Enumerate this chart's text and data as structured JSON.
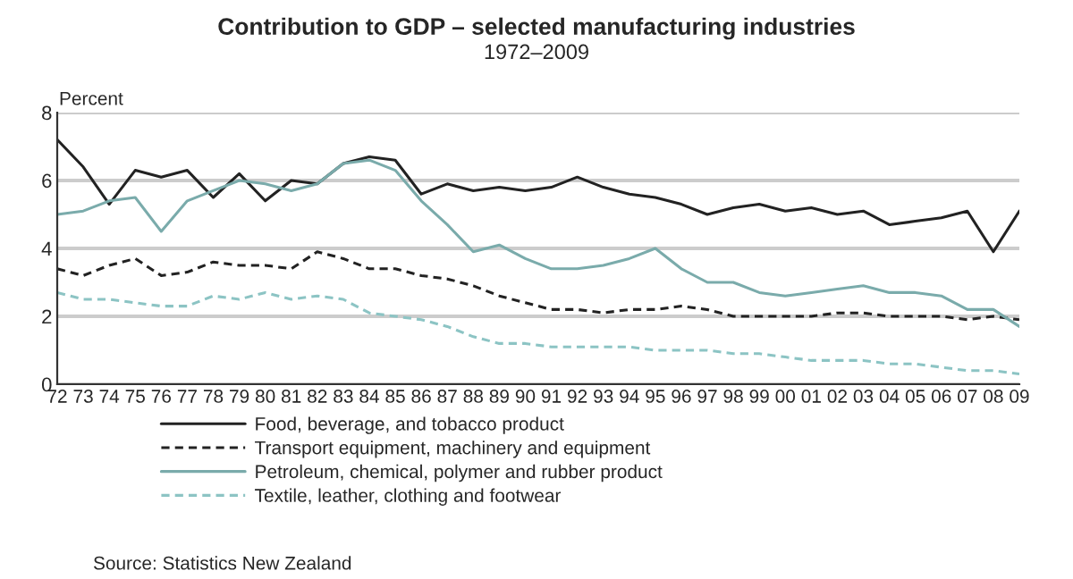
{
  "chart_data": {
    "type": "line",
    "title": "Contribution to GDP – selected manufacturing industries",
    "subtitle": "1972–2009",
    "ylabel": "Percent",
    "categories": [
      "72",
      "73",
      "74",
      "75",
      "76",
      "77",
      "78",
      "79",
      "80",
      "81",
      "82",
      "83",
      "84",
      "85",
      "86",
      "87",
      "88",
      "89",
      "90",
      "91",
      "92",
      "93",
      "94",
      "95",
      "96",
      "97",
      "98",
      "99",
      "00",
      "01",
      "02",
      "03",
      "04",
      "05",
      "06",
      "07",
      "08",
      "09"
    ],
    "ylim": [
      0,
      8
    ],
    "yticks": [
      0,
      2,
      4,
      6,
      8
    ],
    "grid": "y",
    "legend": "bottom",
    "marker": "none",
    "annotations": [
      "Source: Statistics New Zealand"
    ],
    "series": [
      {
        "name": "Food, beverage, and tobacco product",
        "color": "#222222",
        "line_style": "solid",
        "values": [
          7.2,
          6.4,
          5.3,
          6.3,
          6.1,
          6.3,
          5.5,
          6.2,
          5.4,
          6.0,
          5.9,
          6.5,
          6.7,
          6.6,
          5.6,
          5.9,
          5.7,
          5.8,
          5.7,
          5.8,
          6.1,
          5.8,
          5.6,
          5.5,
          5.3,
          5.0,
          5.2,
          5.3,
          5.1,
          5.2,
          5.0,
          5.1,
          4.7,
          4.8,
          4.9,
          5.1,
          3.9,
          5.1
        ]
      },
      {
        "name": "Transport equipment, machinery and equipment",
        "color": "#222222",
        "line_style": "dashed",
        "values": [
          3.4,
          3.2,
          3.5,
          3.7,
          3.2,
          3.3,
          3.6,
          3.5,
          3.5,
          3.4,
          3.9,
          3.7,
          3.4,
          3.4,
          3.2,
          3.1,
          2.9,
          2.6,
          2.4,
          2.2,
          2.2,
          2.1,
          2.2,
          2.2,
          2.3,
          2.2,
          2.0,
          2.0,
          2.0,
          2.0,
          2.1,
          2.1,
          2.0,
          2.0,
          2.0,
          1.9,
          2.0,
          1.9
        ]
      },
      {
        "name": "Petroleum, chemical, polymer and rubber product",
        "color": "#7aabab",
        "line_style": "solid",
        "values": [
          5.0,
          5.1,
          5.4,
          5.5,
          4.5,
          5.4,
          5.7,
          6.0,
          5.9,
          5.7,
          5.9,
          6.5,
          6.6,
          6.3,
          5.4,
          4.7,
          3.9,
          4.1,
          3.7,
          3.4,
          3.4,
          3.5,
          3.7,
          4.0,
          3.4,
          3.0,
          3.0,
          2.7,
          2.6,
          2.7,
          2.8,
          2.9,
          2.7,
          2.7,
          2.6,
          2.2,
          2.2,
          1.7
        ]
      },
      {
        "name": "Textile, leather, clothing and footwear",
        "color": "#8cc4c4",
        "line_style": "dashed",
        "values": [
          2.7,
          2.5,
          2.5,
          2.4,
          2.3,
          2.3,
          2.6,
          2.5,
          2.7,
          2.5,
          2.6,
          2.5,
          2.1,
          2.0,
          1.9,
          1.7,
          1.4,
          1.2,
          1.2,
          1.1,
          1.1,
          1.1,
          1.1,
          1.0,
          1.0,
          1.0,
          0.9,
          0.9,
          0.8,
          0.7,
          0.7,
          0.7,
          0.6,
          0.6,
          0.5,
          0.4,
          0.4,
          0.3
        ]
      }
    ]
  }
}
